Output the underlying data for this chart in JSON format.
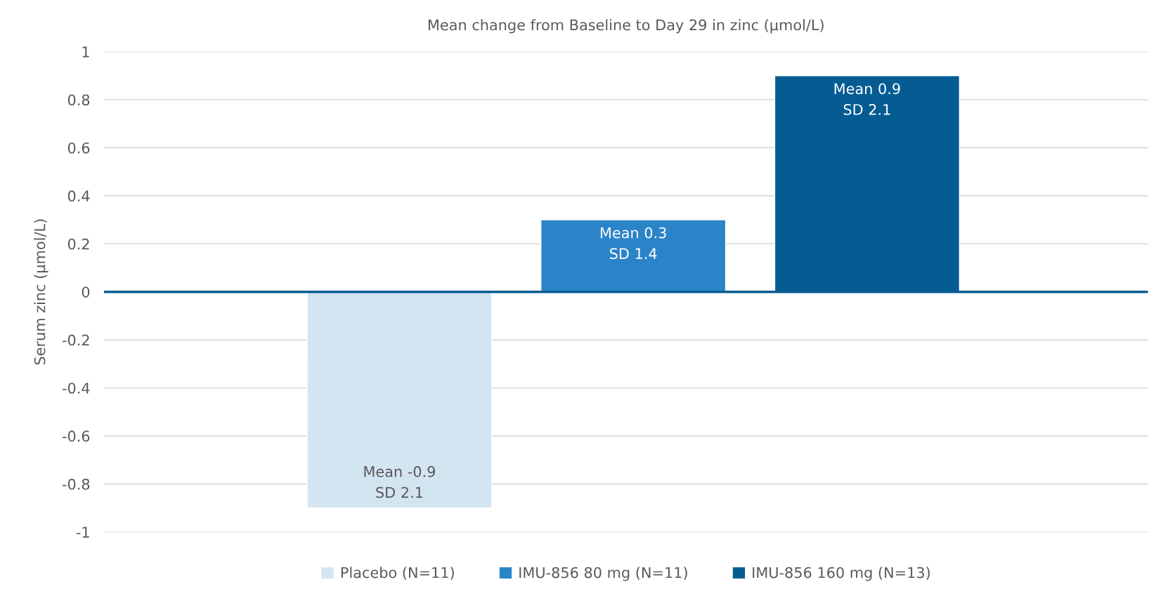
{
  "chart_data": {
    "type": "bar",
    "title": "Mean change from Baseline to Day 29 in zinc (µmol/L)",
    "ylabel": "Serum zinc (µmol/L)",
    "categories": [
      null
    ],
    "series": [
      {
        "name": "Placebo (N=11)",
        "color": "#d4e5f2",
        "values": [
          -0.9
        ],
        "value_labels": [
          "Mean -0.9\nSD 2.1"
        ]
      },
      {
        "name": "IMU-856 80 mg (N=11)",
        "color": "#2a84c8",
        "values": [
          0.3
        ],
        "value_labels": [
          "Mean 0.3\nSD 1.4"
        ]
      },
      {
        "name": "IMU-856 160 mg (N=13)",
        "color": "#045c93",
        "values": [
          0.9
        ],
        "value_labels": [
          "Mean 0.9\nSD 2.1"
        ]
      }
    ],
    "ylim": [
      -1,
      1
    ],
    "yticks": [
      -1,
      -0.8,
      -0.6,
      -0.4,
      -0.2,
      0,
      0.2,
      0.4,
      0.6,
      0.8,
      1
    ],
    "ref_lines": [
      {
        "axis": "y",
        "value": 0,
        "color": "#045c93"
      }
    ],
    "grid": "y",
    "legend": "bottom"
  }
}
